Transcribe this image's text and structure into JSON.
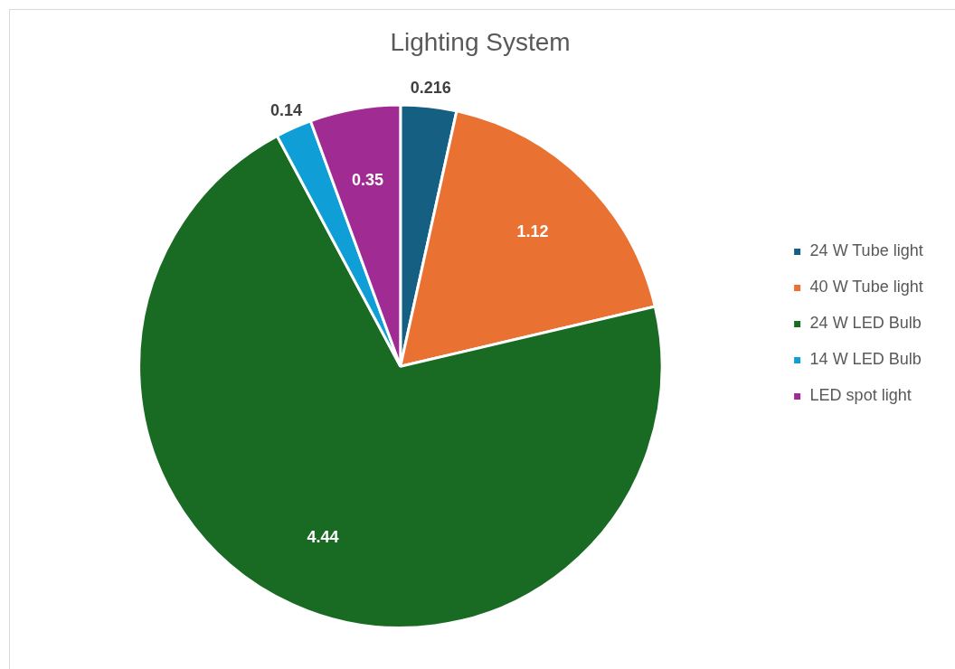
{
  "chart_data": {
    "type": "pie",
    "title": "Lighting System",
    "categories": [
      "24 W Tube light",
      "40 W Tube light",
      "24 W LED Bulb",
      "14 W LED Bulb",
      "LED spot light"
    ],
    "values": [
      0.216,
      1.12,
      4.44,
      0.14,
      0.35
    ],
    "colors": [
      "#156082",
      "#e97132",
      "#196b24",
      "#0f9ed5",
      "#a02b93"
    ],
    "data_labels": true,
    "legend": "right"
  }
}
